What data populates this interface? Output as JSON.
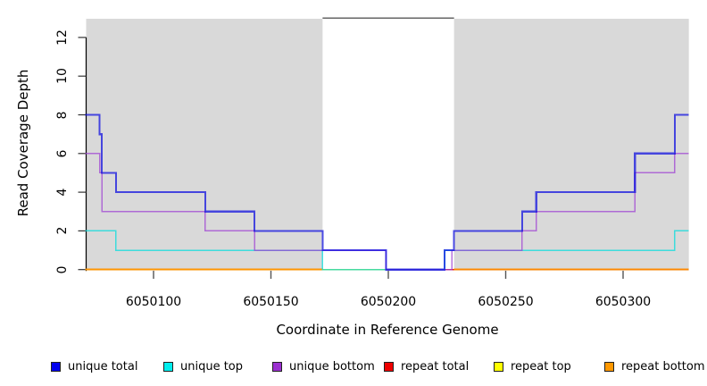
{
  "chart_data": {
    "type": "line",
    "subtype": "step",
    "title": "",
    "xlabel": "Coordinate in Reference Genome",
    "ylabel": "Read Coverage Depth",
    "x_ticks": [
      6050100,
      6050150,
      6050200,
      6050250,
      6050300
    ],
    "y_ticks": [
      0,
      2,
      4,
      6,
      8,
      10,
      12
    ],
    "xlim": [
      6050071,
      6050328
    ],
    "ylim": [
      0,
      13
    ],
    "grid": false,
    "legend_position": "bottom",
    "shading": {
      "shaded_color": "#d9d9d9",
      "shaded_regions": [
        [
          6050071,
          6050172
        ],
        [
          6050228,
          6050328
        ]
      ],
      "gap_region": [
        6050172,
        6050228
      ],
      "gap_top_value": 13,
      "gap_border_color": "#666666"
    },
    "series": [
      {
        "name": "repeat total",
        "color": "#dd0000",
        "opacity": 0.9,
        "width": 1.6,
        "runs": [
          [
            6050071,
            6050328,
            0
          ]
        ]
      },
      {
        "name": "repeat top",
        "color": "#ffe800",
        "opacity": 0.9,
        "width": 1.6,
        "runs": [
          [
            6050071,
            6050224,
            0
          ]
        ]
      },
      {
        "name": "repeat bottom",
        "color": "#ff9000",
        "opacity": 0.92,
        "width": 2,
        "runs": [
          [
            6050071,
            6050172,
            0
          ],
          [
            6050228,
            6050328,
            0
          ]
        ]
      },
      {
        "name": "unique top",
        "color": "#00dcdc",
        "opacity": 0.72,
        "width": 1.5,
        "runs": [
          [
            6050071,
            6050084,
            2
          ],
          [
            6050084,
            6050172,
            1
          ],
          [
            6050172,
            6050224,
            0
          ],
          [
            6050224,
            6050322,
            1
          ],
          [
            6050322,
            6050328,
            2
          ]
        ]
      },
      {
        "name": "unique bottom",
        "color": "#9d3fd3",
        "opacity": 0.72,
        "width": 1.5,
        "runs": [
          [
            6050071,
            6050077,
            6
          ],
          [
            6050077,
            6050078,
            5
          ],
          [
            6050078,
            6050122,
            3
          ],
          [
            6050122,
            6050143,
            2
          ],
          [
            6050143,
            6050199,
            1
          ],
          [
            6050199,
            6050227,
            0
          ],
          [
            6050227,
            6050257,
            1
          ],
          [
            6050257,
            6050263,
            2
          ],
          [
            6050263,
            6050305,
            3
          ],
          [
            6050305,
            6050322,
            5
          ],
          [
            6050322,
            6050328,
            6
          ]
        ]
      },
      {
        "name": "unique total",
        "color": "#0b0bdf",
        "opacity": 0.72,
        "width": 2.2,
        "runs": [
          [
            6050071,
            6050077,
            8
          ],
          [
            6050077,
            6050078,
            7
          ],
          [
            6050078,
            6050084,
            5
          ],
          [
            6050084,
            6050122,
            4
          ],
          [
            6050122,
            6050143,
            3
          ],
          [
            6050143,
            6050172,
            2
          ],
          [
            6050172,
            6050199,
            1
          ],
          [
            6050199,
            6050224,
            0
          ],
          [
            6050224,
            6050228,
            1
          ],
          [
            6050228,
            6050257,
            2
          ],
          [
            6050257,
            6050263,
            3
          ],
          [
            6050263,
            6050305,
            4
          ],
          [
            6050305,
            6050322,
            6
          ],
          [
            6050322,
            6050328,
            8
          ]
        ]
      }
    ]
  },
  "legend": {
    "items": [
      {
        "label": "unique total",
        "color": "#0000ee"
      },
      {
        "label": "unique top",
        "color": "#00eeee"
      },
      {
        "label": "unique bottom",
        "color": "#9b30d0"
      },
      {
        "label": "repeat total",
        "color": "#ee0000"
      },
      {
        "label": "repeat top",
        "color": "#ffff00"
      },
      {
        "label": "repeat bottom",
        "color": "#ff9800"
      }
    ]
  }
}
